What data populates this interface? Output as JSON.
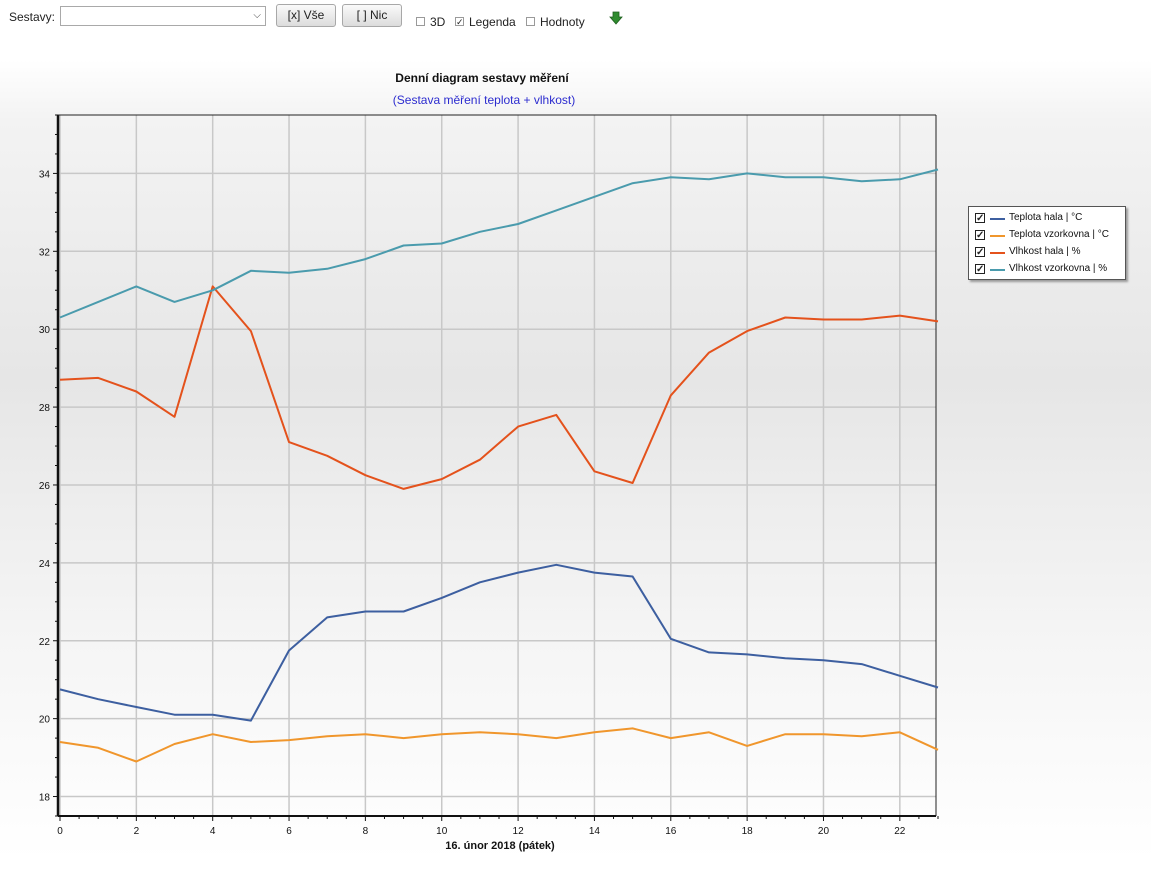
{
  "toolbar": {
    "sestavy_label": "Sestavy:",
    "select_value": "",
    "btn_all": "[x] Vše",
    "btn_none": "[ ] Nic",
    "cb_3d_label": "3D",
    "cb_3d_checked": false,
    "cb_legend_label": "Legenda",
    "cb_legend_checked": true,
    "cb_values_label": "Hodnoty",
    "cb_values_checked": false,
    "download_icon": "green-down-arrow-icon"
  },
  "chart_data": {
    "type": "line",
    "title": "Denní diagram sestavy měření",
    "subtitle": "(Sestava měření teplota + vlhkost)",
    "xlabel": "16. únor 2018 (pátek)",
    "ylabel": "",
    "xlim": [
      0,
      23
    ],
    "ylim": [
      17.5,
      35.5
    ],
    "x_ticks": [
      0,
      2,
      4,
      6,
      8,
      10,
      12,
      14,
      16,
      18,
      20,
      22
    ],
    "y_ticks": [
      18,
      20,
      22,
      24,
      26,
      28,
      30,
      32,
      34
    ],
    "grid": true,
    "legend_position": "right",
    "x": [
      0,
      1,
      2,
      3,
      4,
      5,
      6,
      7,
      8,
      9,
      10,
      11,
      12,
      13,
      14,
      15,
      16,
      17,
      18,
      19,
      20,
      21,
      22,
      23
    ],
    "series": [
      {
        "name": "Teplota hala | °C",
        "color": "#3d5fa0",
        "values": [
          20.75,
          20.5,
          20.3,
          20.1,
          20.1,
          19.95,
          21.75,
          22.6,
          22.75,
          22.75,
          23.1,
          23.5,
          23.75,
          23.95,
          23.75,
          23.65,
          22.05,
          21.7,
          21.65,
          21.55,
          21.5,
          21.4,
          21.1,
          20.8
        ]
      },
      {
        "name": "Teplota vzorkovna | °C",
        "color": "#f0962c",
        "values": [
          19.4,
          19.25,
          18.9,
          19.35,
          19.6,
          19.4,
          19.45,
          19.55,
          19.6,
          19.5,
          19.6,
          19.65,
          19.6,
          19.5,
          19.65,
          19.75,
          19.5,
          19.65,
          19.3,
          19.6,
          19.6,
          19.55,
          19.65,
          19.2
        ]
      },
      {
        "name": "Vlhkost hala | %",
        "color": "#e4521c",
        "values": [
          28.7,
          28.75,
          28.4,
          27.75,
          31.1,
          29.95,
          27.1,
          26.75,
          26.25,
          25.9,
          26.15,
          26.65,
          27.5,
          27.8,
          26.35,
          26.05,
          28.3,
          29.4,
          29.95,
          30.3,
          30.25,
          30.25,
          30.35,
          30.2
        ]
      },
      {
        "name": "Vlhkost vzorkovna | %",
        "color": "#4a9bad",
        "values": [
          30.3,
          30.7,
          31.1,
          30.7,
          31.0,
          31.5,
          31.45,
          31.55,
          31.8,
          32.15,
          32.2,
          32.5,
          32.7,
          33.05,
          33.4,
          33.75,
          33.9,
          33.85,
          34.0,
          33.9,
          33.9,
          33.8,
          33.85,
          34.1
        ]
      }
    ]
  }
}
